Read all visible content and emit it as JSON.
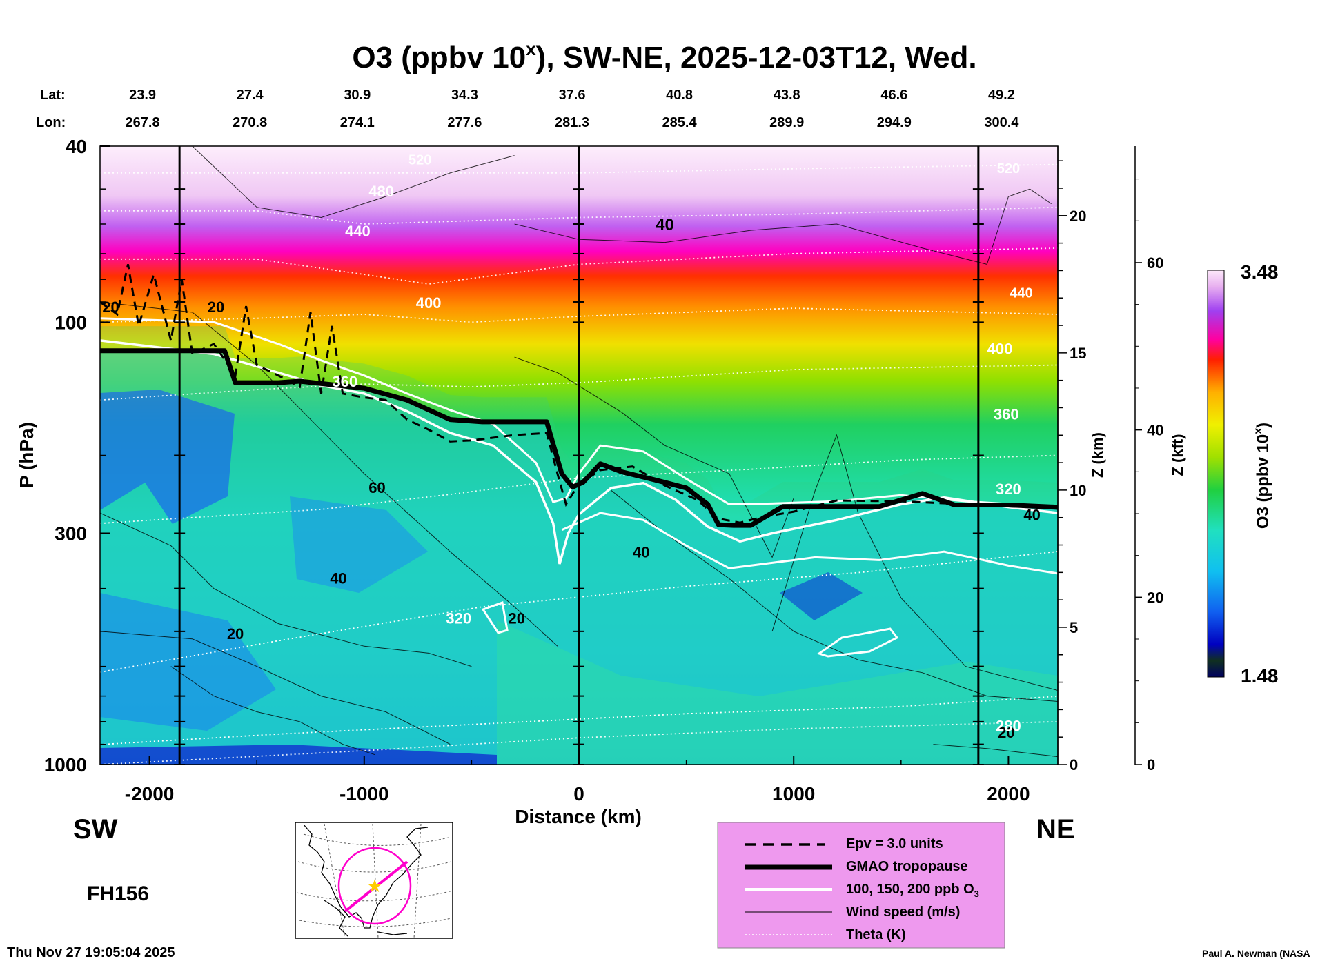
{
  "chart_data": {
    "type": "heatmap",
    "title_main": "O3 (ppbv 10",
    "title_sup": "x",
    "title_rest": "), SW-NE, 2025-12-03T12, Wed.",
    "xlabel": "Distance (km)",
    "ylabel": "P (hPa)",
    "z_km_label": "Z (km)",
    "z_kft_label": "Z (kft)",
    "colorbar_label_main": "O3 (ppbv 10",
    "colorbar_label_sup": "x",
    "colorbar_label_end": ")",
    "colorbar_max_label": "3.48",
    "colorbar_min_label": "1.48",
    "colorbar_range": [
      1.48,
      3.48
    ],
    "xlim": [
      -2230,
      2230
    ],
    "ylim": [
      1000,
      40
    ],
    "y_scale": "log",
    "x_ticks": [
      -2000,
      -1000,
      0,
      1000,
      2000
    ],
    "y_ticks": [
      40,
      100,
      300,
      1000
    ],
    "z_km_ticks": [
      {
        "z": 0,
        "label": "0"
      },
      {
        "z": 1,
        "label": ""
      },
      {
        "z": 2,
        "label": ""
      },
      {
        "z": 3,
        "label": ""
      },
      {
        "z": 4,
        "label": ""
      },
      {
        "z": 5,
        "label": "5"
      },
      {
        "z": 6,
        "label": ""
      },
      {
        "z": 7,
        "label": ""
      },
      {
        "z": 8,
        "label": ""
      },
      {
        "z": 9,
        "label": ""
      },
      {
        "z": 10,
        "label": "10"
      },
      {
        "z": 11,
        "label": ""
      },
      {
        "z": 12,
        "label": ""
      },
      {
        "z": 13,
        "label": ""
      },
      {
        "z": 14,
        "label": ""
      },
      {
        "z": 15,
        "label": "15"
      },
      {
        "z": 16,
        "label": ""
      },
      {
        "z": 17,
        "label": ""
      },
      {
        "z": 18,
        "label": ""
      },
      {
        "z": 19,
        "label": ""
      },
      {
        "z": 20,
        "label": "20"
      },
      {
        "z": 21,
        "label": ""
      },
      {
        "z": 22,
        "label": ""
      }
    ],
    "z_kft_ticks": [
      0,
      20,
      40,
      60
    ],
    "lat_label": "Lat:",
    "lon_label": "Lon:",
    "top_axis": [
      {
        "x": -2000,
        "lat": "23.9",
        "lon": "267.8"
      },
      {
        "x": -1500,
        "lat": "27.4",
        "lon": "270.8"
      },
      {
        "x": -1000,
        "lat": "30.9",
        "lon": "274.1"
      },
      {
        "x": -500,
        "lat": "34.3",
        "lon": "277.6"
      },
      {
        "x": 0,
        "lat": "37.6",
        "lon": "281.3"
      },
      {
        "x": 500,
        "lat": "40.8",
        "lon": "285.4"
      },
      {
        "x": 1000,
        "lat": "43.8",
        "lon": "289.9"
      },
      {
        "x": 1500,
        "lat": "46.6",
        "lon": "294.9"
      },
      {
        "x": 2000,
        "lat": "49.2",
        "lon": "300.4"
      }
    ],
    "vertical_lines_x": [
      -1860,
      0,
      1860
    ],
    "tropopause": [
      [
        -2230,
        116
      ],
      [
        -1650,
        116
      ],
      [
        -1600,
        137
      ],
      [
        -1400,
        137
      ],
      [
        -1300,
        136
      ],
      [
        -1000,
        141
      ],
      [
        -800,
        150
      ],
      [
        -600,
        166
      ],
      [
        -450,
        168
      ],
      [
        -150,
        168
      ],
      [
        -80,
        220
      ],
      [
        -30,
        236
      ],
      [
        20,
        230
      ],
      [
        100,
        209
      ],
      [
        200,
        218
      ],
      [
        350,
        227
      ],
      [
        500,
        237
      ],
      [
        600,
        258
      ],
      [
        650,
        287
      ],
      [
        720,
        288
      ],
      [
        800,
        288
      ],
      [
        950,
        261
      ],
      [
        1100,
        261
      ],
      [
        1400,
        261
      ],
      [
        1600,
        244
      ],
      [
        1750,
        259
      ],
      [
        2000,
        259
      ],
      [
        2230,
        262
      ]
    ],
    "ozone_100ppb": [
      [
        -2230,
        110
      ],
      [
        -1700,
        118
      ],
      [
        -1400,
        130
      ],
      [
        -1200,
        139
      ],
      [
        -1000,
        145
      ],
      [
        -800,
        159
      ],
      [
        -600,
        178
      ],
      [
        -400,
        190
      ],
      [
        -200,
        230
      ],
      [
        -120,
        285
      ],
      [
        -90,
        352
      ],
      [
        -50,
        300
      ],
      [
        0,
        272
      ],
      [
        150,
        237
      ],
      [
        300,
        231
      ],
      [
        450,
        252
      ],
      [
        600,
        290
      ],
      [
        750,
        313
      ],
      [
        900,
        300
      ],
      [
        1200,
        280
      ],
      [
        1500,
        258
      ],
      [
        1700,
        249
      ],
      [
        2000,
        262
      ],
      [
        2230,
        270
      ]
    ],
    "ozone_150ppb": [
      [
        -2230,
        98
      ],
      [
        -1700,
        100
      ],
      [
        -1400,
        112
      ],
      [
        -1200,
        122
      ],
      [
        -1000,
        132
      ],
      [
        -800,
        145
      ],
      [
        -600,
        158
      ],
      [
        -400,
        170
      ],
      [
        -200,
        208
      ],
      [
        -120,
        255
      ],
      [
        -60,
        250
      ],
      [
        0,
        220
      ],
      [
        100,
        190
      ],
      [
        300,
        196
      ],
      [
        500,
        226
      ],
      [
        700,
        258
      ],
      [
        900,
        257
      ],
      [
        1200,
        254
      ],
      [
        1500,
        246
      ],
      [
        1800,
        254
      ],
      [
        2230,
        262
      ]
    ],
    "ozone_200ppb_low": [
      [
        -80,
        295
      ],
      [
        100,
        270
      ],
      [
        300,
        280
      ],
      [
        500,
        320
      ],
      [
        700,
        360
      ],
      [
        900,
        350
      ],
      [
        1100,
        340
      ],
      [
        1400,
        345
      ],
      [
        1700,
        330
      ],
      [
        2000,
        355
      ],
      [
        2230,
        370
      ]
    ],
    "epv_3": [
      [
        -2230,
        90
      ],
      [
        -2150,
        96
      ],
      [
        -2100,
        74
      ],
      [
        -2050,
        102
      ],
      [
        -1980,
        78
      ],
      [
        -1900,
        110
      ],
      [
        -1850,
        80
      ],
      [
        -1800,
        118
      ],
      [
        -1700,
        112
      ],
      [
        -1600,
        132
      ],
      [
        -1550,
        92
      ],
      [
        -1500,
        125
      ],
      [
        -1400,
        132
      ],
      [
        -1300,
        140
      ],
      [
        -1250,
        95
      ],
      [
        -1200,
        145
      ],
      [
        -1150,
        102
      ],
      [
        -1100,
        145
      ],
      [
        -1000,
        148
      ],
      [
        -900,
        150
      ],
      [
        -800,
        166
      ],
      [
        -700,
        175
      ],
      [
        -600,
        186
      ],
      [
        -500,
        185
      ],
      [
        -300,
        180
      ],
      [
        -150,
        178
      ],
      [
        -100,
        220
      ],
      [
        -60,
        258
      ],
      [
        0,
        232
      ],
      [
        100,
        216
      ],
      [
        250,
        212
      ],
      [
        400,
        234
      ],
      [
        550,
        252
      ],
      [
        650,
        278
      ],
      [
        750,
        284
      ],
      [
        850,
        276
      ],
      [
        1000,
        268
      ],
      [
        1200,
        253
      ],
      [
        1500,
        254
      ],
      [
        1800,
        258
      ],
      [
        2230,
        264
      ]
    ],
    "wind_speed_label_20a": "20",
    "wind_speed_label_40a": "40",
    "wind_speed_label_60": "60",
    "wind_speed_label_40b": "40",
    "wind_speed_label_20b": "20",
    "wind_speed_label_20c": "20",
    "wind_speed_label_40c": "40",
    "wind_speed_label_20d": "20",
    "wind_speed_label_20e": "20",
    "wind_speed_label_40d": "40",
    "theta_label_520a": "520",
    "theta_label_480": "480",
    "theta_label_440a": "440",
    "theta_label_400a": "400",
    "theta_label_360a": "360",
    "theta_label_320a": "320",
    "theta_label_520b": "520",
    "theta_label_440b": "440",
    "theta_label_400b": "400",
    "theta_label_360b": "360",
    "theta_label_320b": "320",
    "theta_label_280": "280",
    "theta_levels": [
      280,
      320,
      360,
      400,
      440,
      480,
      520
    ],
    "direction_left": "SW",
    "direction_right": "NE",
    "forecast_hour": "FH156",
    "timestamp": "Thu Nov 27 19:05:04 2025",
    "credit": "Paul A. Newman (NASA",
    "legend": [
      {
        "label": "Epv = 3.0 units",
        "style": "dashed"
      },
      {
        "label": "GMAO tropopause",
        "style": "thick"
      },
      {
        "label": "100, 150, 200 ppb O",
        "sub": "3",
        "style": "white"
      },
      {
        "label": "Wind speed (m/s)",
        "style": "thin"
      },
      {
        "label": "Theta (K)",
        "style": "dotted"
      }
    ],
    "legend_background": "#ee99ee",
    "colors": {
      "tropopause": "#000000",
      "ozone_contour": "#ffffff",
      "theta": "#ffffff",
      "wind": "#000000",
      "map_track": "#ff00cc",
      "map_marker": "#ffcc00"
    }
  }
}
